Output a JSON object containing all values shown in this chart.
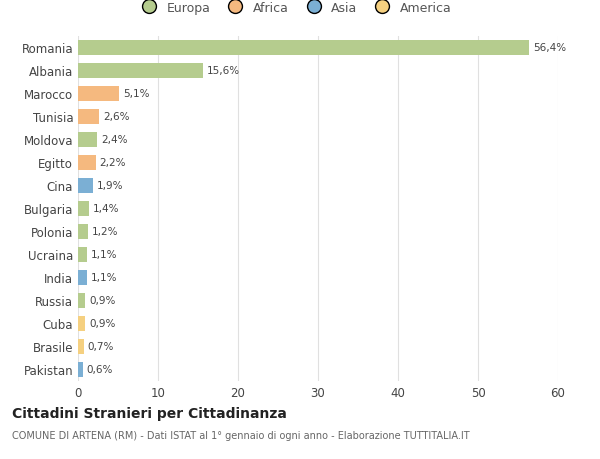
{
  "categories": [
    "Romania",
    "Albania",
    "Marocco",
    "Tunisia",
    "Moldova",
    "Egitto",
    "Cina",
    "Bulgaria",
    "Polonia",
    "Ucraina",
    "India",
    "Russia",
    "Cuba",
    "Brasile",
    "Pakistan"
  ],
  "values": [
    56.4,
    15.6,
    5.1,
    2.6,
    2.4,
    2.2,
    1.9,
    1.4,
    1.2,
    1.1,
    1.1,
    0.9,
    0.9,
    0.7,
    0.6
  ],
  "labels": [
    "56,4%",
    "15,6%",
    "5,1%",
    "2,6%",
    "2,4%",
    "2,2%",
    "1,9%",
    "1,4%",
    "1,2%",
    "1,1%",
    "1,1%",
    "0,9%",
    "0,9%",
    "0,7%",
    "0,6%"
  ],
  "colors": [
    "#b5cc8e",
    "#b5cc8e",
    "#f5b97f",
    "#f5b97f",
    "#b5cc8e",
    "#f5b97f",
    "#7bafd4",
    "#b5cc8e",
    "#b5cc8e",
    "#b5cc8e",
    "#7bafd4",
    "#b5cc8e",
    "#f5d080",
    "#f5d080",
    "#7bafd4"
  ],
  "legend_labels": [
    "Europa",
    "Africa",
    "Asia",
    "America"
  ],
  "legend_colors": [
    "#b5cc8e",
    "#f5b97f",
    "#7bafd4",
    "#f5d080"
  ],
  "title": "Cittadini Stranieri per Cittadinanza",
  "subtitle": "COMUNE DI ARTENA (RM) - Dati ISTAT al 1° gennaio di ogni anno - Elaborazione TUTTITALIA.IT",
  "xlim": [
    0,
    60
  ],
  "xticks": [
    0,
    10,
    20,
    30,
    40,
    50,
    60
  ],
  "background_color": "#ffffff",
  "grid_color": "#e0e0e0"
}
